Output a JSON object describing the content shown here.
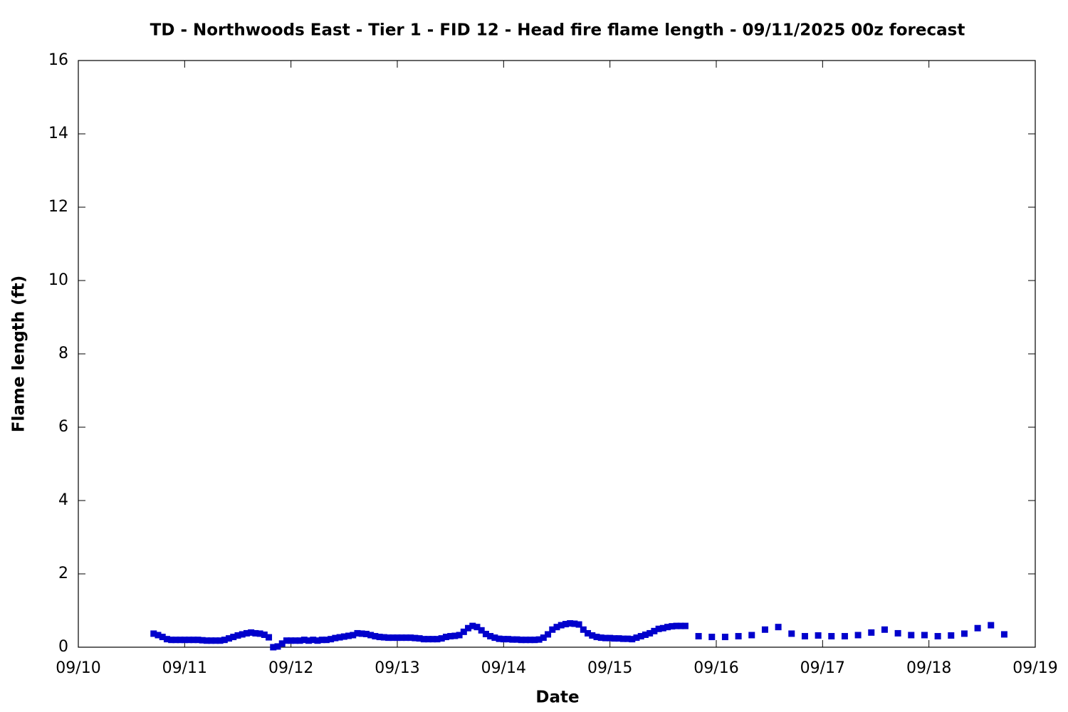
{
  "chart_data": {
    "type": "scatter",
    "title": "TD - Northwoods East - Tier 1 - FID 12 - Head fire flame length - 09/11/2025 00z forecast",
    "x_label": "Date",
    "y_label": "Flame length (ft)",
    "xlim": [
      0,
      216
    ],
    "xticks": [
      {
        "value": 0,
        "label": "09/10"
      },
      {
        "value": 24,
        "label": "09/11"
      },
      {
        "value": 48,
        "label": "09/12"
      },
      {
        "value": 72,
        "label": "09/13"
      },
      {
        "value": 96,
        "label": "09/14"
      },
      {
        "value": 120,
        "label": "09/15"
      },
      {
        "value": 144,
        "label": "09/16"
      },
      {
        "value": 168,
        "label": "09/17"
      },
      {
        "value": 192,
        "label": "09/18"
      },
      {
        "value": 216,
        "label": "09/19"
      }
    ],
    "ylim": [
      0,
      16
    ],
    "yticks": [
      0,
      2,
      4,
      6,
      8,
      10,
      12,
      14,
      16
    ],
    "series": [
      {
        "color": "#0000cc",
        "x": [
          17,
          18,
          19,
          20,
          21,
          22,
          23,
          24,
          25,
          26,
          27,
          28,
          29,
          30,
          31,
          32,
          33,
          34,
          35,
          36,
          37,
          38,
          39,
          40,
          41,
          42,
          43,
          44,
          45,
          46,
          47,
          48,
          49,
          50,
          51,
          52,
          53,
          54,
          55,
          56,
          57,
          58,
          59,
          60,
          61,
          62,
          63,
          64,
          65,
          66,
          67,
          68,
          69,
          70,
          71,
          72,
          73,
          74,
          75,
          76,
          77,
          78,
          79,
          80,
          81,
          82,
          83,
          84,
          85,
          86,
          87,
          88,
          89,
          90,
          91,
          92,
          93,
          94,
          95,
          96,
          97,
          98,
          99,
          100,
          101,
          102,
          103,
          104,
          105,
          106,
          107,
          108,
          109,
          110,
          111,
          112,
          113,
          114,
          115,
          116,
          117,
          118,
          119,
          120,
          121,
          122,
          123,
          124,
          125,
          126,
          127,
          128,
          129,
          130,
          131,
          132,
          133,
          134,
          135,
          136,
          137,
          140,
          143,
          146,
          149,
          152,
          155,
          158,
          161,
          164,
          167,
          170,
          173,
          176,
          179,
          182,
          185,
          188,
          191,
          194,
          197,
          200,
          203,
          206,
          209
        ],
        "values": [
          0.37,
          0.33,
          0.28,
          0.22,
          0.2,
          0.2,
          0.2,
          0.2,
          0.2,
          0.2,
          0.2,
          0.19,
          0.18,
          0.18,
          0.18,
          0.18,
          0.2,
          0.24,
          0.28,
          0.32,
          0.35,
          0.38,
          0.4,
          0.38,
          0.37,
          0.34,
          0.27,
          0,
          0.02,
          0.1,
          0.18,
          0.18,
          0.18,
          0.18,
          0.2,
          0.18,
          0.2,
          0.18,
          0.2,
          0.2,
          0.22,
          0.25,
          0.27,
          0.29,
          0.31,
          0.33,
          0.38,
          0.37,
          0.36,
          0.33,
          0.3,
          0.28,
          0.27,
          0.26,
          0.26,
          0.26,
          0.26,
          0.26,
          0.26,
          0.25,
          0.24,
          0.22,
          0.22,
          0.22,
          0.22,
          0.24,
          0.28,
          0.3,
          0.31,
          0.33,
          0.42,
          0.52,
          0.58,
          0.55,
          0.46,
          0.36,
          0.3,
          0.26,
          0.23,
          0.22,
          0.22,
          0.21,
          0.21,
          0.2,
          0.2,
          0.2,
          0.2,
          0.21,
          0.26,
          0.35,
          0.48,
          0.55,
          0.6,
          0.63,
          0.65,
          0.64,
          0.62,
          0.48,
          0.38,
          0.32,
          0.28,
          0.26,
          0.25,
          0.25,
          0.24,
          0.24,
          0.23,
          0.23,
          0.22,
          0.26,
          0.3,
          0.34,
          0.38,
          0.44,
          0.5,
          0.52,
          0.55,
          0.57,
          0.58,
          0.58,
          0.58,
          0.3,
          0.28,
          0.28,
          0.3,
          0.33,
          0.48,
          0.55,
          0.37,
          0.3,
          0.32,
          0.3,
          0.3,
          0.33,
          0.4,
          0.48,
          0.38,
          0.33,
          0.33,
          0.3,
          0.32,
          0.37,
          0.52,
          0.6,
          0.35
        ]
      }
    ]
  }
}
